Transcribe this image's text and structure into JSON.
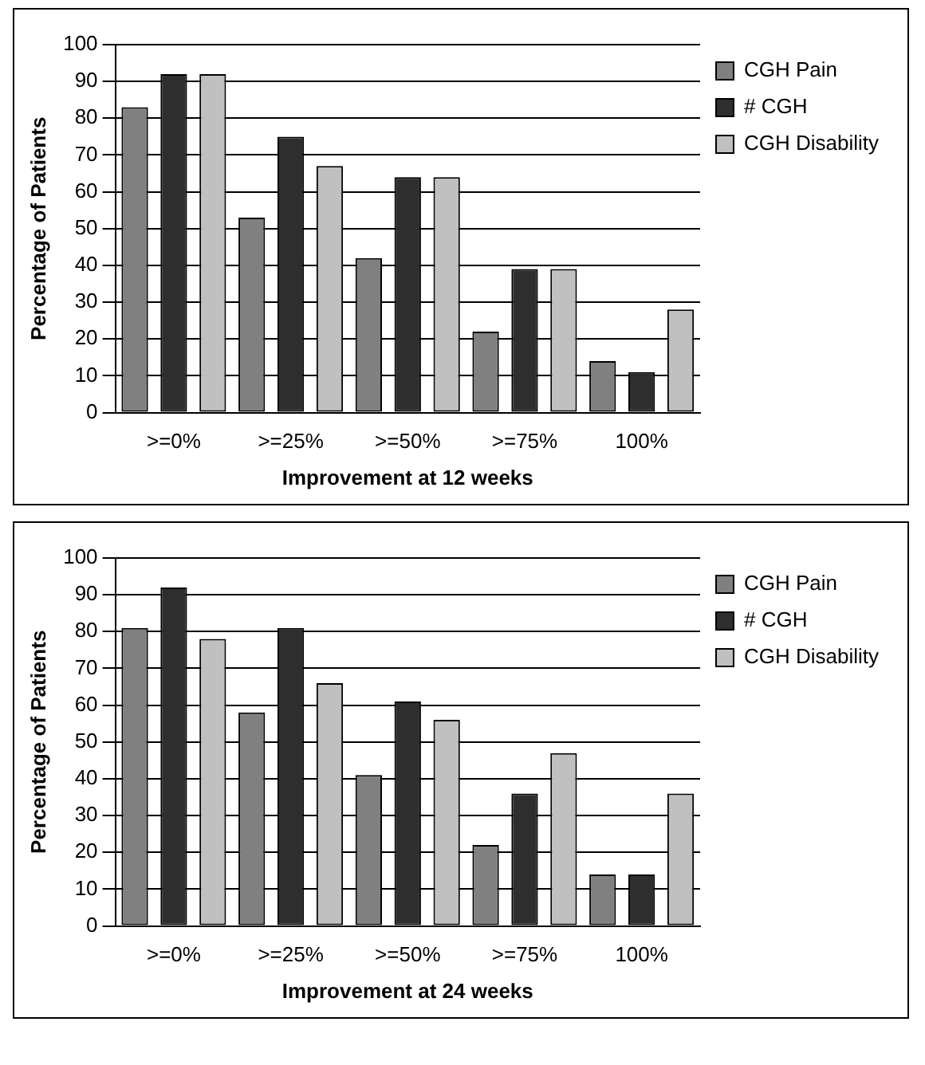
{
  "chart_data": [
    {
      "type": "bar",
      "xlabel": "Improvement at 12 weeks",
      "ylabel": "Percentage of Patients",
      "categories": [
        ">=0%",
        ">=25%",
        ">=50%",
        ">=75%",
        "100%"
      ],
      "series": [
        {
          "name": "CGH Pain",
          "color": "#808080",
          "values": [
            83,
            53,
            42,
            22,
            14
          ]
        },
        {
          "name": "# CGH",
          "color": "#2e2e2e",
          "values": [
            92,
            75,
            64,
            39,
            11
          ]
        },
        {
          "name": "CGH Disability",
          "color": "#c0c0c0",
          "values": [
            92,
            67,
            64,
            39,
            28
          ]
        }
      ],
      "ylim": [
        0,
        100
      ],
      "yticks": [
        0,
        10,
        20,
        30,
        40,
        50,
        60,
        70,
        80,
        90,
        100
      ],
      "grid": "y",
      "legend": "top right"
    },
    {
      "type": "bar",
      "xlabel": "Improvement at 24 weeks",
      "ylabel": "Percentage of Patients",
      "categories": [
        ">=0%",
        ">=25%",
        ">=50%",
        ">=75%",
        "100%"
      ],
      "series": [
        {
          "name": "CGH Pain",
          "color": "#808080",
          "values": [
            81,
            58,
            41,
            22,
            14
          ]
        },
        {
          "name": "# CGH",
          "color": "#2e2e2e",
          "values": [
            92,
            81,
            61,
            36,
            14
          ]
        },
        {
          "name": "CGH Disability",
          "color": "#c0c0c0",
          "values": [
            78,
            66,
            56,
            47,
            36
          ]
        }
      ],
      "ylim": [
        0,
        100
      ],
      "yticks": [
        0,
        10,
        20,
        30,
        40,
        50,
        60,
        70,
        80,
        90,
        100
      ],
      "grid": "y",
      "legend": "top right"
    }
  ]
}
